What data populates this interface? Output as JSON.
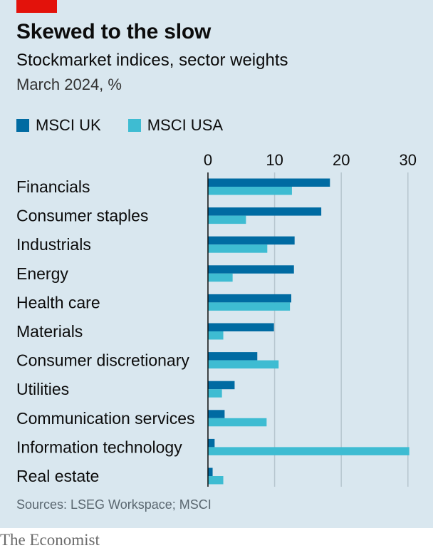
{
  "header": {
    "title": "Skewed to the slow",
    "subtitle": "Stockmarket indices, sector weights",
    "units": "March 2024, %"
  },
  "footer": {
    "source": "Sources: LSEG Workspace; MSCI",
    "brand": "The Economist"
  },
  "colors": {
    "background": "#d9e7ef",
    "accent": "#e3120b",
    "uk": "#006ba2",
    "usa": "#3ebcd2",
    "grid": "#b7c6cf",
    "axis": "#0c0c0c"
  },
  "chart_data": {
    "type": "bar",
    "orientation": "horizontal",
    "title": "Skewed to the slow",
    "subtitle": "Stockmarket indices, sector weights",
    "xlabel": "",
    "ylabel": "",
    "xlim": [
      0,
      31
    ],
    "xticks": [
      0,
      10,
      20,
      30
    ],
    "grid": true,
    "legend_position": "top-left",
    "categories": [
      "Financials",
      "Consumer staples",
      "Industrials",
      "Energy",
      "Health care",
      "Materials",
      "Consumer discretionary",
      "Utilities",
      "Communication services",
      "Information technology",
      "Real estate"
    ],
    "series": [
      {
        "name": "MSCI UK",
        "color": "#006ba2",
        "values": [
          18.3,
          17.0,
          13.0,
          12.9,
          12.5,
          9.9,
          7.4,
          4.0,
          2.5,
          1.0,
          0.7
        ]
      },
      {
        "name": "MSCI USA",
        "color": "#3ebcd2",
        "values": [
          12.6,
          5.7,
          8.9,
          3.7,
          12.3,
          2.3,
          10.6,
          2.1,
          8.8,
          30.2,
          2.3
        ]
      }
    ]
  }
}
